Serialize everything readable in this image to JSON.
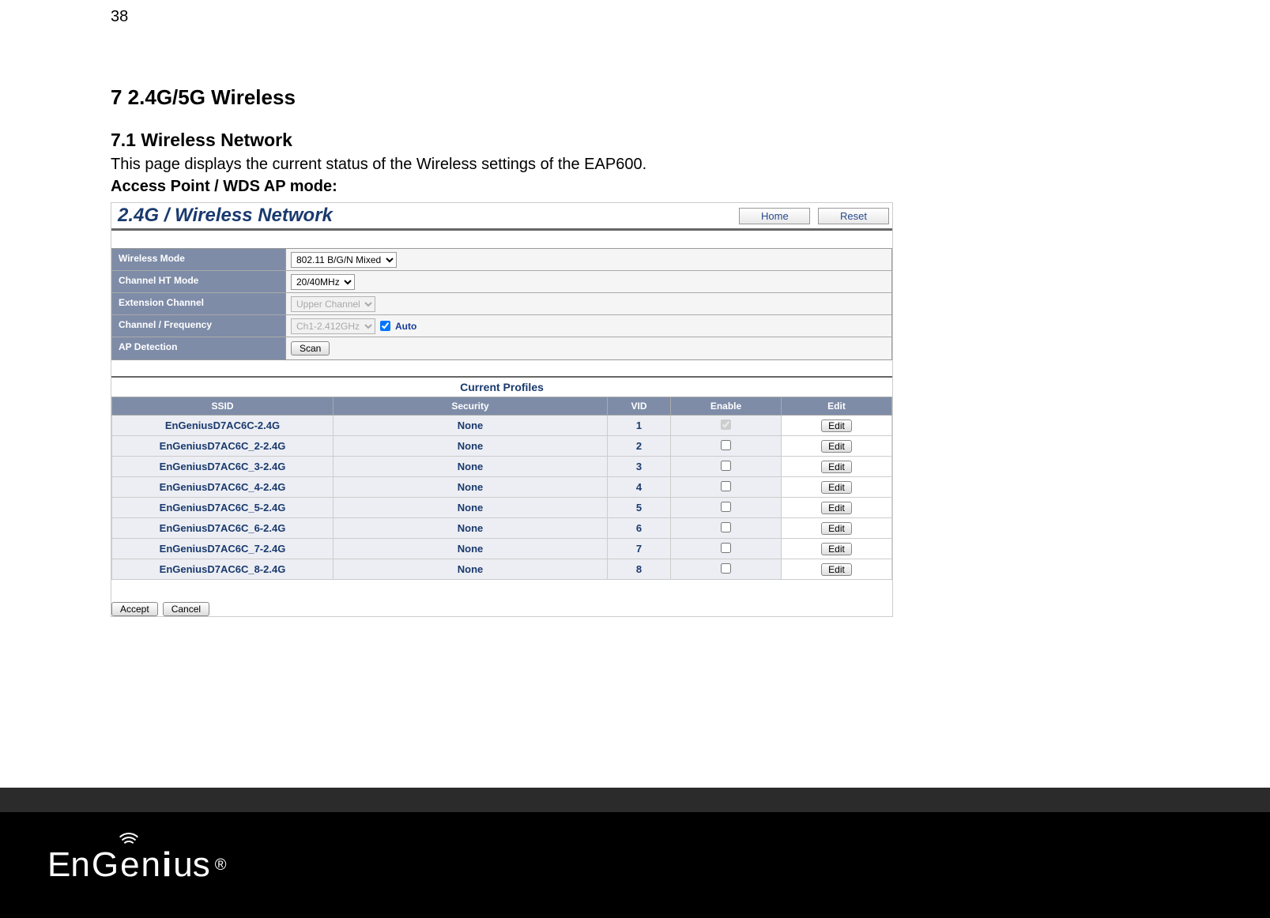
{
  "page_number": "38",
  "chapter": "7  2.4G/5G Wireless",
  "section": "7.1   Wireless Network",
  "intro": "This page displays the current status of the Wireless settings of the EAP600.",
  "mode_label": "Access Point / WDS AP mode:",
  "panel": {
    "title": "2.4G / Wireless Network",
    "home": "Home",
    "reset": "Reset",
    "rows": {
      "wireless_mode": {
        "label": "Wireless Mode",
        "value": "802.11 B/G/N Mixed"
      },
      "ht_mode": {
        "label": "Channel HT Mode",
        "value": "20/40MHz"
      },
      "ext_channel": {
        "label": "Extension Channel",
        "value": "Upper Channel"
      },
      "freq": {
        "label": "Channel / Frequency",
        "value": "Ch1-2.412GHz",
        "auto": "Auto"
      },
      "ap_detect": {
        "label": "AP Detection",
        "button": "Scan"
      }
    },
    "profiles_title": "Current Profiles",
    "columns": {
      "ssid": "SSID",
      "security": "Security",
      "vid": "VID",
      "enable": "Enable",
      "edit": "Edit"
    },
    "edit_label": "Edit",
    "rows_data": [
      {
        "ssid": "EnGeniusD7AC6C-2.4G",
        "security": "None",
        "vid": "1",
        "checked": true
      },
      {
        "ssid": "EnGeniusD7AC6C_2-2.4G",
        "security": "None",
        "vid": "2",
        "checked": false
      },
      {
        "ssid": "EnGeniusD7AC6C_3-2.4G",
        "security": "None",
        "vid": "3",
        "checked": false
      },
      {
        "ssid": "EnGeniusD7AC6C_4-2.4G",
        "security": "None",
        "vid": "4",
        "checked": false
      },
      {
        "ssid": "EnGeniusD7AC6C_5-2.4G",
        "security": "None",
        "vid": "5",
        "checked": false
      },
      {
        "ssid": "EnGeniusD7AC6C_6-2.4G",
        "security": "None",
        "vid": "6",
        "checked": false
      },
      {
        "ssid": "EnGeniusD7AC6C_7-2.4G",
        "security": "None",
        "vid": "7",
        "checked": false
      },
      {
        "ssid": "EnGeniusD7AC6C_8-2.4G",
        "security": "None",
        "vid": "8",
        "checked": false
      }
    ],
    "accept": "Accept",
    "cancel": "Cancel"
  },
  "brand": "EnGenius",
  "reg": "®"
}
